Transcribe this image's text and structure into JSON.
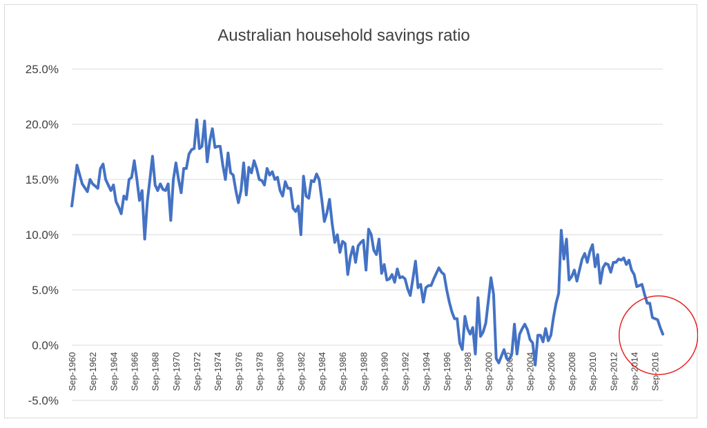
{
  "chart_data": {
    "type": "line",
    "title": "Australian household savings ratio",
    "xlabel": "",
    "ylabel": "",
    "y_ticks": [
      "25.0%",
      "20.0%",
      "15.0%",
      "10.0%",
      "5.0%",
      "0.0%",
      "-5.0%"
    ],
    "ylim": [
      -5,
      25
    ],
    "grid": true,
    "legend": "none",
    "x_ticks": [
      "Sep-1960",
      "Sep-1962",
      "Sep-1964",
      "Sep-1966",
      "Sep-1968",
      "Sep-1970",
      "Sep-1972",
      "Sep-1974",
      "Sep-1976",
      "Sep-1978",
      "Sep-1980",
      "Sep-1982",
      "Sep-1984",
      "Sep-1986",
      "Sep-1988",
      "Sep-1990",
      "Sep-1992",
      "Sep-1994",
      "Sep-1996",
      "Sep-1998",
      "Sep-2000",
      "Sep-2002",
      "Sep-2004",
      "Sep-2006",
      "Sep-2008",
      "Sep-2010",
      "Sep-2012",
      "Sep-2014",
      "Sep-2016"
    ],
    "series": [
      {
        "color": "#4472c4",
        "points": [
          [
            "Sep-1960",
            12.6
          ],
          [
            "Mar-1961",
            16.3
          ],
          [
            "Sep-1961",
            14.6
          ],
          [
            "Mar-1962",
            13.9
          ],
          [
            "Jun-1962",
            15.0
          ],
          [
            "Sep-1962",
            14.6
          ],
          [
            "Mar-1963",
            14.2
          ],
          [
            "Jun-1963",
            16.0
          ],
          [
            "Sep-1963",
            16.4
          ],
          [
            "Dec-1963",
            15.0
          ],
          [
            "Mar-1964",
            14.5
          ],
          [
            "Jun-1964",
            14.0
          ],
          [
            "Sep-1964",
            14.5
          ],
          [
            "Dec-1964",
            13.0
          ],
          [
            "Mar-1965",
            12.5
          ],
          [
            "Jun-1965",
            11.9
          ],
          [
            "Sep-1965",
            13.5
          ],
          [
            "Dec-1965",
            13.2
          ],
          [
            "Mar-1966",
            15.0
          ],
          [
            "Jun-1966",
            15.2
          ],
          [
            "Sep-1966",
            16.7
          ],
          [
            "Dec-1966",
            15.0
          ],
          [
            "Mar-1967",
            13.1
          ],
          [
            "Jun-1967",
            14.0
          ],
          [
            "Sep-1967",
            9.6
          ],
          [
            "Dec-1967",
            13.0
          ],
          [
            "Mar-1968",
            15.0
          ],
          [
            "Jun-1968",
            17.1
          ],
          [
            "Sep-1968",
            14.5
          ],
          [
            "Dec-1968",
            14.0
          ],
          [
            "Mar-1969",
            14.6
          ],
          [
            "Jun-1969",
            14.1
          ],
          [
            "Sep-1969",
            14.0
          ],
          [
            "Dec-1969",
            14.6
          ],
          [
            "Mar-1970",
            11.3
          ],
          [
            "Jun-1970",
            15.0
          ],
          [
            "Sep-1970",
            16.5
          ],
          [
            "Dec-1970",
            15.0
          ],
          [
            "Mar-1971",
            13.8
          ],
          [
            "Jun-1971",
            16.0
          ],
          [
            "Sep-1971",
            16.0
          ],
          [
            "Dec-1971",
            17.3
          ],
          [
            "Mar-1972",
            17.7
          ],
          [
            "Jun-1972",
            17.8
          ],
          [
            "Sep-1972",
            20.4
          ],
          [
            "Dec-1972",
            17.8
          ],
          [
            "Mar-1973",
            18.0
          ],
          [
            "Jun-1973",
            20.3
          ],
          [
            "Sep-1973",
            16.6
          ],
          [
            "Dec-1973",
            18.5
          ],
          [
            "Mar-1974",
            19.6
          ],
          [
            "Jun-1974",
            17.9
          ],
          [
            "Sep-1974",
            18.0
          ],
          [
            "Dec-1974",
            18.0
          ],
          [
            "Mar-1975",
            16.3
          ],
          [
            "Jun-1975",
            15.0
          ],
          [
            "Sep-1975",
            17.4
          ],
          [
            "Dec-1975",
            15.6
          ],
          [
            "Mar-1976",
            15.4
          ],
          [
            "Jun-1976",
            14.0
          ],
          [
            "Sep-1976",
            12.9
          ],
          [
            "Dec-1976",
            14.0
          ],
          [
            "Mar-1977",
            16.5
          ],
          [
            "Jun-1977",
            13.6
          ],
          [
            "Sep-1977",
            16.1
          ],
          [
            "Dec-1977",
            15.6
          ],
          [
            "Mar-1978",
            16.7
          ],
          [
            "Jun-1978",
            16.0
          ],
          [
            "Sep-1978",
            15.0
          ],
          [
            "Dec-1978",
            14.9
          ],
          [
            "Mar-1979",
            14.5
          ],
          [
            "Jun-1979",
            16.0
          ],
          [
            "Sep-1979",
            15.4
          ],
          [
            "Dec-1979",
            15.7
          ],
          [
            "Mar-1980",
            15.0
          ],
          [
            "Jun-1980",
            15.2
          ],
          [
            "Sep-1980",
            14.0
          ],
          [
            "Dec-1980",
            13.5
          ],
          [
            "Mar-1981",
            14.8
          ],
          [
            "Jun-1981",
            14.2
          ],
          [
            "Sep-1981",
            14.2
          ],
          [
            "Dec-1981",
            12.4
          ],
          [
            "Mar-1982",
            12.1
          ],
          [
            "Jun-1982",
            12.6
          ],
          [
            "Sep-1982",
            10.0
          ],
          [
            "Dec-1982",
            15.3
          ],
          [
            "Mar-1983",
            13.5
          ],
          [
            "Jun-1983",
            13.3
          ],
          [
            "Sep-1983",
            14.9
          ],
          [
            "Dec-1983",
            14.8
          ],
          [
            "Mar-1984",
            15.5
          ],
          [
            "Jun-1984",
            15.0
          ],
          [
            "Sep-1984",
            13.2
          ],
          [
            "Dec-1984",
            11.2
          ],
          [
            "Mar-1985",
            12.0
          ],
          [
            "Jun-1985",
            13.2
          ],
          [
            "Sep-1985",
            11.0
          ],
          [
            "Dec-1985",
            9.3
          ],
          [
            "Mar-1986",
            10.0
          ],
          [
            "Jun-1986",
            8.4
          ],
          [
            "Sep-1986",
            9.4
          ],
          [
            "Dec-1986",
            9.2
          ],
          [
            "Mar-1987",
            6.4
          ],
          [
            "Jun-1987",
            8.0
          ],
          [
            "Sep-1987",
            8.9
          ],
          [
            "Dec-1987",
            7.5
          ],
          [
            "Mar-1988",
            9.0
          ],
          [
            "Jun-1988",
            9.3
          ],
          [
            "Sep-1988",
            9.5
          ],
          [
            "Dec-1988",
            6.8
          ],
          [
            "Mar-1989",
            10.5
          ],
          [
            "Jun-1989",
            10.0
          ],
          [
            "Sep-1989",
            8.6
          ],
          [
            "Dec-1989",
            8.2
          ],
          [
            "Mar-1990",
            9.6
          ],
          [
            "Jun-1990",
            6.5
          ],
          [
            "Sep-1990",
            7.3
          ],
          [
            "Dec-1990",
            5.9
          ],
          [
            "Mar-1991",
            6.0
          ],
          [
            "Jun-1991",
            6.4
          ],
          [
            "Sep-1991",
            5.7
          ],
          [
            "Dec-1991",
            6.9
          ],
          [
            "Mar-1992",
            6.1
          ],
          [
            "Jun-1992",
            6.2
          ],
          [
            "Sep-1992",
            6.0
          ],
          [
            "Dec-1992",
            5.1
          ],
          [
            "Mar-1993",
            4.5
          ],
          [
            "Jun-1993",
            6.0
          ],
          [
            "Sep-1993",
            7.6
          ],
          [
            "Dec-1993",
            5.2
          ],
          [
            "Mar-1994",
            5.5
          ],
          [
            "Jun-1994",
            3.9
          ],
          [
            "Sep-1994",
            5.2
          ],
          [
            "Dec-1994",
            5.4
          ],
          [
            "Mar-1995",
            5.4
          ],
          [
            "Jun-1995",
            6.0
          ],
          [
            "Sep-1995",
            6.5
          ],
          [
            "Dec-1995",
            7.0
          ],
          [
            "Mar-1996",
            6.6
          ],
          [
            "Jun-1996",
            6.4
          ],
          [
            "Sep-1996",
            5.0
          ],
          [
            "Dec-1996",
            3.9
          ],
          [
            "Mar-1997",
            3.0
          ],
          [
            "Jun-1997",
            2.4
          ],
          [
            "Sep-1997",
            2.4
          ],
          [
            "Dec-1997",
            0.2
          ],
          [
            "Mar-1998",
            -0.4
          ],
          [
            "Jun-1998",
            2.6
          ],
          [
            "Sep-1998",
            1.5
          ],
          [
            "Dec-1998",
            1.0
          ],
          [
            "Mar-1999",
            1.6
          ],
          [
            "Jun-1999",
            -0.8
          ],
          [
            "Sep-1999",
            4.3
          ],
          [
            "Dec-1999",
            0.8
          ],
          [
            "Mar-2000",
            1.2
          ],
          [
            "Jun-2000",
            2.0
          ],
          [
            "Sep-2000",
            4.0
          ],
          [
            "Dec-2000",
            6.1
          ],
          [
            "Mar-2001",
            4.6
          ],
          [
            "Jun-2001",
            -1.2
          ],
          [
            "Sep-2001",
            -1.6
          ],
          [
            "Dec-2001",
            -1.0
          ],
          [
            "Mar-2002",
            -0.4
          ],
          [
            "Jun-2002",
            -1.2
          ],
          [
            "Sep-2002",
            -1.3
          ],
          [
            "Dec-2002",
            -0.8
          ],
          [
            "Mar-2003",
            1.9
          ],
          [
            "Jun-2003",
            -0.8
          ],
          [
            "Sep-2003",
            1.0
          ],
          [
            "Dec-2003",
            1.5
          ],
          [
            "Mar-2004",
            1.9
          ],
          [
            "Jun-2004",
            1.4
          ],
          [
            "Sep-2004",
            0.5
          ],
          [
            "Dec-2004",
            0.2
          ],
          [
            "Mar-2005",
            -1.8
          ],
          [
            "Jun-2005",
            0.9
          ],
          [
            "Sep-2005",
            0.9
          ],
          [
            "Dec-2005",
            0.3
          ],
          [
            "Mar-2006",
            1.5
          ],
          [
            "Jun-2006",
            0.4
          ],
          [
            "Sep-2006",
            0.9
          ],
          [
            "Dec-2006",
            2.5
          ],
          [
            "Mar-2007",
            3.8
          ],
          [
            "Jun-2007",
            4.7
          ],
          [
            "Sep-2007",
            10.4
          ],
          [
            "Dec-2007",
            7.8
          ],
          [
            "Mar-2008",
            9.6
          ],
          [
            "Jun-2008",
            5.9
          ],
          [
            "Sep-2008",
            6.2
          ],
          [
            "Dec-2008",
            6.8
          ],
          [
            "Mar-2009",
            5.8
          ],
          [
            "Jun-2009",
            6.8
          ],
          [
            "Sep-2009",
            7.8
          ],
          [
            "Dec-2009",
            8.3
          ],
          [
            "Mar-2010",
            7.5
          ],
          [
            "Jun-2010",
            8.5
          ],
          [
            "Sep-2010",
            9.1
          ],
          [
            "Dec-2010",
            7.1
          ],
          [
            "Mar-2011",
            8.2
          ],
          [
            "Jun-2011",
            5.6
          ],
          [
            "Sep-2011",
            7.0
          ],
          [
            "Dec-2011",
            7.4
          ],
          [
            "Mar-2012",
            7.3
          ],
          [
            "Jun-2012",
            6.6
          ],
          [
            "Sep-2012",
            7.5
          ],
          [
            "Dec-2012",
            7.5
          ],
          [
            "Mar-2013",
            7.8
          ],
          [
            "Jun-2013",
            7.7
          ],
          [
            "Sep-2013",
            7.9
          ],
          [
            "Dec-2013",
            7.3
          ],
          [
            "Mar-2014",
            7.7
          ],
          [
            "Jun-2014",
            6.8
          ],
          [
            "Sep-2014",
            6.4
          ],
          [
            "Dec-2014",
            5.3
          ],
          [
            "Mar-2015",
            5.4
          ],
          [
            "Jun-2015",
            5.5
          ],
          [
            "Sep-2015",
            4.6
          ],
          [
            "Dec-2015",
            3.8
          ],
          [
            "Mar-2016",
            3.8
          ],
          [
            "Jun-2016",
            2.5
          ],
          [
            "Sep-2016",
            2.4
          ],
          [
            "Dec-2016",
            2.3
          ],
          [
            "Mar-2017",
            1.6
          ],
          [
            "Jun-2017",
            1.0
          ]
        ]
      }
    ],
    "annotation": {
      "shape": "circle",
      "color": "#e8201d",
      "around": "Sep-2016 to Jun-2017"
    }
  }
}
